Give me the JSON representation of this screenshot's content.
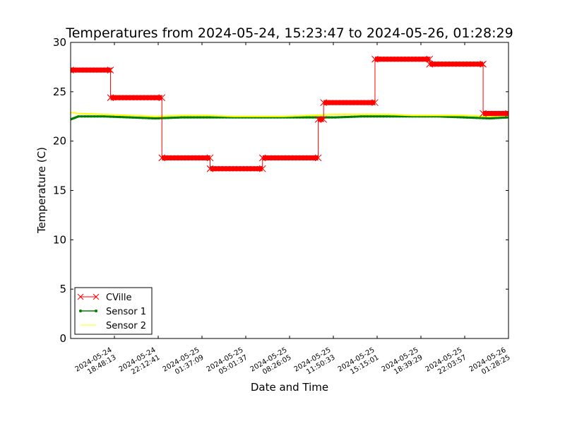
{
  "chart_data": {
    "type": "line",
    "title": "Temperatures from 2024-05-24, 15:23:47 to 2024-05-26, 01:28:29",
    "xlabel": "Date and Time",
    "ylabel": "Temperature (C)",
    "ylim": [
      0,
      30
    ],
    "xlim": [
      "2024-05-24 15:23:47",
      "2024-05-26 01:28:29"
    ],
    "y_ticks": [
      "0",
      "5",
      "10",
      "15",
      "20",
      "25",
      "30"
    ],
    "x_ticks": [
      {
        "label": [
          "2024-05-24",
          "18:48:13"
        ],
        "t": "2024-05-24 18:48:13"
      },
      {
        "label": [
          "2024-05-24",
          "22:12:41"
        ],
        "t": "2024-05-24 22:12:41"
      },
      {
        "label": [
          "2024-05-25",
          "01:37:09"
        ],
        "t": "2024-05-25 01:37:09"
      },
      {
        "label": [
          "2024-05-25",
          "05:01:37"
        ],
        "t": "2024-05-25 05:01:37"
      },
      {
        "label": [
          "2024-05-25",
          "08:26:05"
        ],
        "t": "2024-05-25 08:26:05"
      },
      {
        "label": [
          "2024-05-25",
          "11:50:33"
        ],
        "t": "2024-05-25 11:50:33"
      },
      {
        "label": [
          "2024-05-25",
          "15:15:01"
        ],
        "t": "2024-05-25 15:15:01"
      },
      {
        "label": [
          "2024-05-25",
          "18:39:29"
        ],
        "t": "2024-05-25 18:39:29"
      },
      {
        "label": [
          "2024-05-25",
          "22:03:57"
        ],
        "t": "2024-05-25 22:03:57"
      },
      {
        "label": [
          "2024-05-26",
          "01:28:25"
        ],
        "t": "2024-05-26 01:28:25"
      }
    ],
    "legend_placement": "lower-left",
    "grid": false,
    "series": [
      {
        "name": "CVille",
        "color": "#ff0000",
        "marker": "x",
        "style": "step",
        "steps": [
          {
            "start": "2024-05-24 15:23:47",
            "end": "2024-05-24 18:30:00",
            "value": 27.2
          },
          {
            "start": "2024-05-24 18:30:00",
            "end": "2024-05-24 22:30:00",
            "value": 24.4
          },
          {
            "start": "2024-05-24 22:30:00",
            "end": "2024-05-25 02:15:00",
            "value": 18.3
          },
          {
            "start": "2024-05-25 02:15:00",
            "end": "2024-05-25 06:20:00",
            "value": 17.2
          },
          {
            "start": "2024-05-25 06:20:00",
            "end": "2024-05-25 10:40:00",
            "value": 18.3
          },
          {
            "start": "2024-05-25 10:40:00",
            "end": "2024-05-25 11:05:00",
            "value": 22.2
          },
          {
            "start": "2024-05-25 11:05:00",
            "end": "2024-05-25 15:05:00",
            "value": 23.9
          },
          {
            "start": "2024-05-25 15:05:00",
            "end": "2024-05-25 19:20:00",
            "value": 28.3
          },
          {
            "start": "2024-05-25 19:20:00",
            "end": "2024-05-25 23:30:00",
            "value": 27.8
          },
          {
            "start": "2024-05-25 23:30:00",
            "end": "2024-05-26 01:28:29",
            "value": 22.8
          }
        ]
      },
      {
        "name": "Sensor 1",
        "color": "#008000",
        "marker": "o",
        "points": [
          [
            "2024-05-24 15:23:47",
            22.2
          ],
          [
            "2024-05-24 16:00:00",
            22.5
          ],
          [
            "2024-05-24 18:00:00",
            22.5
          ],
          [
            "2024-05-24 20:00:00",
            22.4
          ],
          [
            "2024-05-24 22:00:00",
            22.3
          ],
          [
            "2024-05-25 00:00:00",
            22.4
          ],
          [
            "2024-05-25 02:00:00",
            22.4
          ],
          [
            "2024-05-25 04:00:00",
            22.4
          ],
          [
            "2024-05-25 06:00:00",
            22.4
          ],
          [
            "2024-05-25 08:00:00",
            22.4
          ],
          [
            "2024-05-25 10:00:00",
            22.4
          ],
          [
            "2024-05-25 12:00:00",
            22.4
          ],
          [
            "2024-05-25 14:00:00",
            22.5
          ],
          [
            "2024-05-25 16:00:00",
            22.5
          ],
          [
            "2024-05-25 18:00:00",
            22.5
          ],
          [
            "2024-05-25 20:00:00",
            22.5
          ],
          [
            "2024-05-25 22:00:00",
            22.4
          ],
          [
            "2024-05-26 00:00:00",
            22.3
          ],
          [
            "2024-05-26 01:28:29",
            22.4
          ]
        ]
      },
      {
        "name": "Sensor 2",
        "color": "#ffff00",
        "marker": "",
        "points": [
          [
            "2024-05-24 15:23:47",
            22.9
          ],
          [
            "2024-05-24 16:00:00",
            22.8
          ],
          [
            "2024-05-24 18:00:00",
            22.7
          ],
          [
            "2024-05-24 20:00:00",
            22.6
          ],
          [
            "2024-05-24 22:00:00",
            22.5
          ],
          [
            "2024-05-25 00:00:00",
            22.6
          ],
          [
            "2024-05-25 02:00:00",
            22.6
          ],
          [
            "2024-05-25 04:00:00",
            22.5
          ],
          [
            "2024-05-25 06:00:00",
            22.5
          ],
          [
            "2024-05-25 08:00:00",
            22.5
          ],
          [
            "2024-05-25 10:00:00",
            22.6
          ],
          [
            "2024-05-25 12:00:00",
            22.7
          ],
          [
            "2024-05-25 14:00:00",
            22.7
          ],
          [
            "2024-05-25 16:00:00",
            22.7
          ],
          [
            "2024-05-25 18:00:00",
            22.6
          ],
          [
            "2024-05-25 20:00:00",
            22.6
          ],
          [
            "2024-05-25 22:00:00",
            22.6
          ],
          [
            "2024-05-26 00:00:00",
            22.5
          ],
          [
            "2024-05-26 01:28:29",
            22.6
          ]
        ]
      }
    ]
  }
}
